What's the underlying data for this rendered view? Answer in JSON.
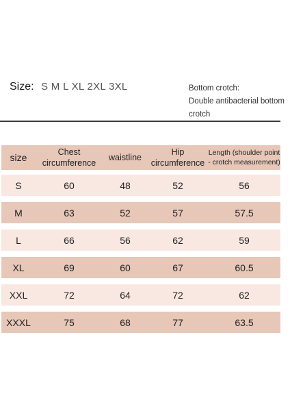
{
  "size_label": "Size:",
  "size_values": "S M L XL 2XL 3XL",
  "crotch_note": {
    "line1": "Bottom crotch:",
    "line2": "Double antibacterial bottom",
    "line3": "crotch"
  },
  "table": {
    "headers": {
      "size": "size",
      "chest_l1": "Chest",
      "chest_l2": "circumference",
      "waist": "waistline",
      "hip_l1": "Hip",
      "hip_l2": "circumference",
      "length_l1": "Length (shoulder point",
      "length_l2": "- crotch measurement)"
    },
    "rows": [
      {
        "size": "S",
        "chest": "60",
        "waist": "48",
        "hip": "52",
        "length": "56"
      },
      {
        "size": "M",
        "chest": "63",
        "waist": "52",
        "hip": "57",
        "length": "57.5"
      },
      {
        "size": "L",
        "chest": "66",
        "waist": "56",
        "hip": "62",
        "length": "59"
      },
      {
        "size": "XL",
        "chest": "69",
        "waist": "60",
        "hip": "67",
        "length": "60.5"
      },
      {
        "size": "XXL",
        "chest": "72",
        "waist": "64",
        "hip": "72",
        "length": "62"
      },
      {
        "size": "XXXL",
        "chest": "75",
        "waist": "68",
        "hip": "77",
        "length": "63.5"
      }
    ]
  },
  "colors": {
    "dark_row": "#e7c7b8",
    "light_row": "#f9e8e1"
  }
}
